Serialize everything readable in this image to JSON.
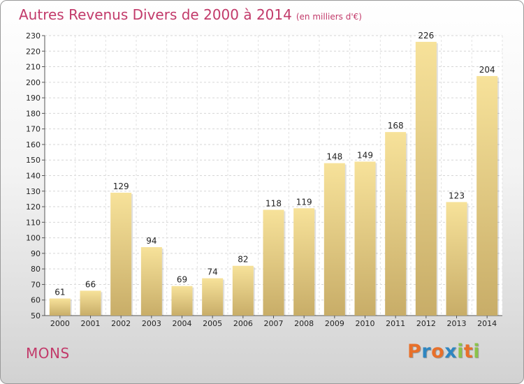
{
  "chart_data": {
    "type": "bar",
    "title": "Autres Revenus Divers de 2000 à 2014",
    "subtitle": "(en milliers d'€)",
    "categories": [
      "2000",
      "2001",
      "2002",
      "2003",
      "2004",
      "2005",
      "2006",
      "2007",
      "2008",
      "2009",
      "2010",
      "2011",
      "2012",
      "2013",
      "2014"
    ],
    "values": [
      61,
      66,
      129,
      94,
      69,
      74,
      82,
      118,
      119,
      148,
      149,
      168,
      226,
      123,
      204
    ],
    "ylim": [
      50,
      230
    ],
    "yticks": [
      50,
      60,
      70,
      80,
      90,
      100,
      110,
      120,
      130,
      140,
      150,
      160,
      170,
      180,
      190,
      200,
      210,
      220,
      230
    ],
    "xlabel": "",
    "ylabel": "",
    "grid": true
  },
  "footer": {
    "city": "MONS",
    "logo_letters": [
      "P",
      "r",
      "o",
      "x",
      "i",
      "t",
      "i"
    ],
    "logo_colors": [
      "#e8702a",
      "#2e86c1",
      "#e8702a",
      "#2e86c1",
      "#8bc34a",
      "#e8702a",
      "#8bc34a"
    ]
  },
  "colors": {
    "bar_light": "#f7e29a",
    "bar_dark": "#c8ad68",
    "title": "#c23a6a"
  }
}
